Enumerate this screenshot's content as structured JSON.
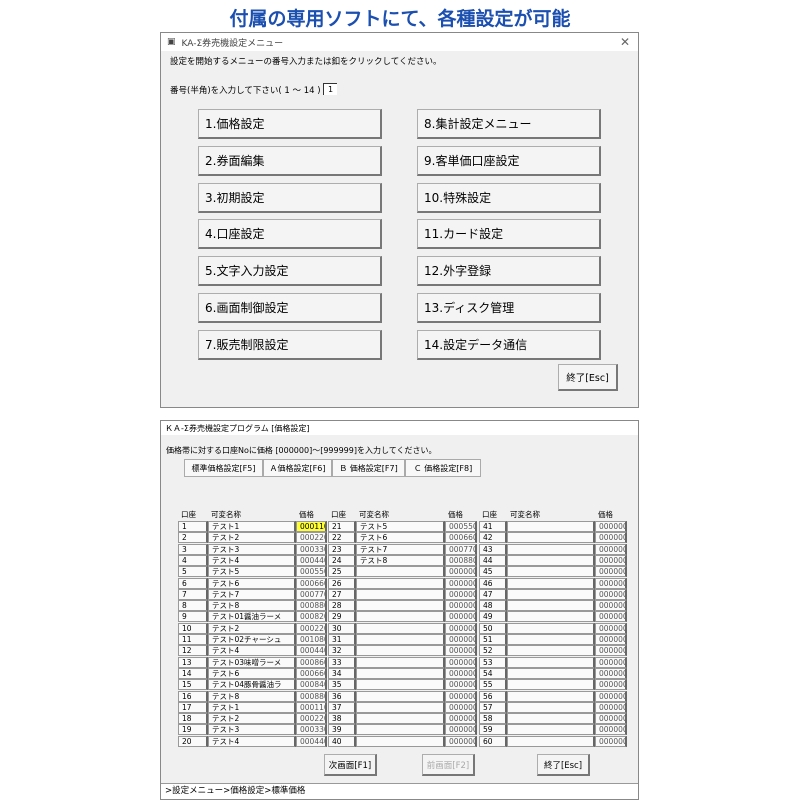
{
  "heading": "付属の専用ソフトにて、各種設定が可能",
  "menu": {
    "title": "KA-Σ券売機設定メニュー",
    "instruction": "設定を開始するメニューの番号入力または釦をクリックしてください。",
    "prompt": "番号(半角)を入力して下さい( 1 ～ 14 )",
    "input_value": "1",
    "buttons": [
      "1.価格設定",
      "2.券面編集",
      "3.初期設定",
      "4.口座設定",
      "5.文字入力設定",
      "6.画面制御設定",
      "7.販売制限設定",
      "8.集計設定メニュー",
      "9.客単価口座設定",
      "10.特殊設定",
      "11.カード設定",
      "12.外字登録",
      "13.ディスク管理",
      "14.設定データ通信"
    ],
    "exit": "終了[Esc]"
  },
  "price": {
    "title": "ＫＡ-Σ券売機設定プログラム [価格設定]",
    "instruction": "価格帯に対する口座Noに価格 [000000]～[999999]を入力してください。",
    "tabs": [
      "標準価格設定[F5]",
      "Ａ価格設定[F6]",
      "Ｂ 価格設定[F7]",
      "Ｃ 価格設定[F8]"
    ],
    "active_tab": 0,
    "headers": {
      "no": "口座",
      "name": "可変名称",
      "price": "価格"
    },
    "rows": [
      [
        "1",
        "テスト1",
        "000110"
      ],
      [
        "2",
        "テスト2",
        "000220"
      ],
      [
        "3",
        "テスト3",
        "000330"
      ],
      [
        "4",
        "テスト4",
        "000440"
      ],
      [
        "5",
        "テスト5",
        "000550"
      ],
      [
        "6",
        "テスト6",
        "000660"
      ],
      [
        "7",
        "テスト7",
        "000770"
      ],
      [
        "8",
        "テスト8",
        "000880"
      ],
      [
        "9",
        "テスト01醤油ラーメ",
        "000820"
      ],
      [
        "10",
        "テスト2",
        "000220"
      ],
      [
        "11",
        "テスト02チャーシュ",
        "001080"
      ],
      [
        "12",
        "テスト4",
        "000440"
      ],
      [
        "13",
        "テスト03味噌ラーメ",
        "000860"
      ],
      [
        "14",
        "テスト6",
        "000660"
      ],
      [
        "15",
        "テスト04豚骨醤油ラ",
        "000840"
      ],
      [
        "16",
        "テスト8",
        "000880"
      ],
      [
        "17",
        "テスト1",
        "000110"
      ],
      [
        "18",
        "テスト2",
        "000220"
      ],
      [
        "19",
        "テスト3",
        "000330"
      ],
      [
        "20",
        "テスト4",
        "000440"
      ],
      [
        "21",
        "テスト5",
        "000550"
      ],
      [
        "22",
        "テスト6",
        "000660"
      ],
      [
        "23",
        "テスト7",
        "000770"
      ],
      [
        "24",
        "テスト8",
        "000880"
      ],
      [
        "25",
        "",
        "000000"
      ],
      [
        "26",
        "",
        "000000"
      ],
      [
        "27",
        "",
        "000000"
      ],
      [
        "28",
        "",
        "000000"
      ],
      [
        "29",
        "",
        "000000"
      ],
      [
        "30",
        "",
        "000000"
      ],
      [
        "31",
        "",
        "000000"
      ],
      [
        "32",
        "",
        "000000"
      ],
      [
        "33",
        "",
        "000000"
      ],
      [
        "34",
        "",
        "000000"
      ],
      [
        "35",
        "",
        "000000"
      ],
      [
        "36",
        "",
        "000000"
      ],
      [
        "37",
        "",
        "000000"
      ],
      [
        "38",
        "",
        "000000"
      ],
      [
        "39",
        "",
        "000000"
      ],
      [
        "40",
        "",
        "000000"
      ],
      [
        "41",
        "",
        "000000"
      ],
      [
        "42",
        "",
        "000000"
      ],
      [
        "43",
        "",
        "000000"
      ],
      [
        "44",
        "",
        "000000"
      ],
      [
        "45",
        "",
        "000000"
      ],
      [
        "46",
        "",
        "000000"
      ],
      [
        "47",
        "",
        "000000"
      ],
      [
        "48",
        "",
        "000000"
      ],
      [
        "49",
        "",
        "000000"
      ],
      [
        "50",
        "",
        "000000"
      ],
      [
        "51",
        "",
        "000000"
      ],
      [
        "52",
        "",
        "000000"
      ],
      [
        "53",
        "",
        "000000"
      ],
      [
        "54",
        "",
        "000000"
      ],
      [
        "55",
        "",
        "000000"
      ],
      [
        "56",
        "",
        "000000"
      ],
      [
        "57",
        "",
        "000000"
      ],
      [
        "58",
        "",
        "000000"
      ],
      [
        "59",
        "",
        "000000"
      ],
      [
        "60",
        "",
        "000000"
      ]
    ],
    "next": "次画面[F1]",
    "prev": "前画面[F2]",
    "exit": "終了[Esc]",
    "status": ">設定メニュー>価格設定>標準価格"
  },
  "colors": {
    "highlight": "#ffff33",
    "heading": "#1b4fb0"
  }
}
